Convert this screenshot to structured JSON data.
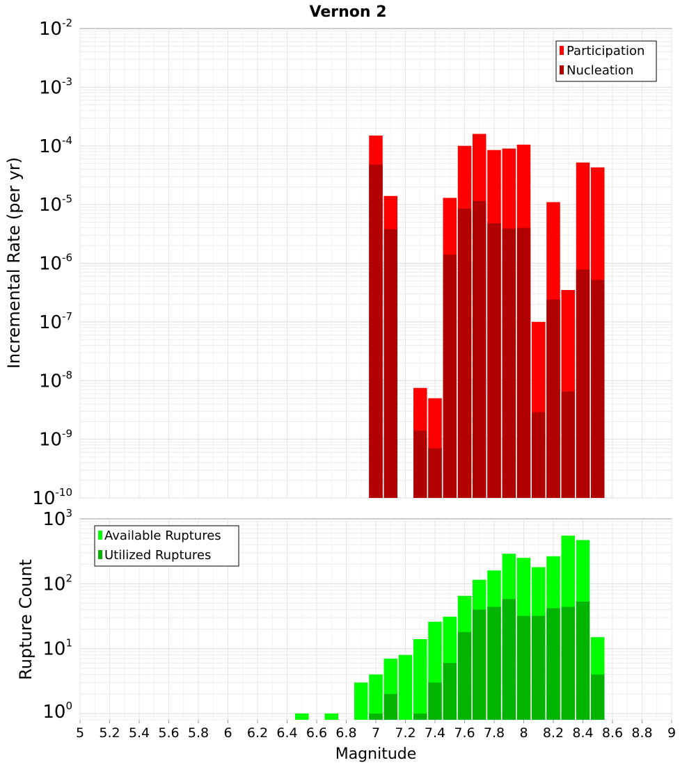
{
  "chart_data": [
    {
      "id": "rate",
      "type": "bar",
      "title": "Vernon 2",
      "xlabel": "Magnitude",
      "ylabel": "Incremental Rate (per yr)",
      "yscale": "log",
      "ylim": [
        1e-10,
        0.01
      ],
      "xlim": [
        5,
        9
      ],
      "grid": true,
      "legend_position": "top-right",
      "y_ticks": [
        {
          "base": "10",
          "exp": "-10"
        },
        {
          "base": "10",
          "exp": "-9"
        },
        {
          "base": "10",
          "exp": "-8"
        },
        {
          "base": "10",
          "exp": "-7"
        },
        {
          "base": "10",
          "exp": "-6"
        },
        {
          "base": "10",
          "exp": "-5"
        },
        {
          "base": "10",
          "exp": "-4"
        },
        {
          "base": "10",
          "exp": "-3"
        },
        {
          "base": "10",
          "exp": "-2"
        }
      ],
      "x": [
        7.0,
        7.1,
        7.2,
        7.3,
        7.4,
        7.5,
        7.6,
        7.7,
        7.8,
        7.9,
        8.0,
        8.1,
        8.2,
        8.3,
        8.4,
        8.5
      ],
      "series": [
        {
          "name": "Participation",
          "color": "#ff0000",
          "values": [
            0.00015,
            1.4e-05,
            null,
            7.5e-09,
            5e-09,
            1.3e-05,
            0.0001,
            0.00016,
            8.5e-05,
            9e-05,
            0.000105,
            1e-07,
            1.1e-05,
            3.5e-07,
            5.2e-05,
            4.3e-05
          ]
        },
        {
          "name": "Nucleation",
          "color": "#b00000",
          "values": [
            4.8e-05,
            3.8e-06,
            null,
            1.4e-09,
            7e-10,
            1.4e-06,
            8.5e-06,
            1.15e-05,
            4.8e-06,
            3.9e-06,
            4e-06,
            2.9e-09,
            2.4e-07,
            6.5e-09,
            7.8e-07,
            5.2e-07
          ]
        }
      ]
    },
    {
      "id": "count",
      "type": "bar",
      "xlabel": "Magnitude",
      "ylabel": "Rupture Count",
      "yscale": "log",
      "ylim": [
        0.8,
        1000
      ],
      "xlim": [
        5,
        9
      ],
      "grid": true,
      "legend_position": "top-left",
      "y_ticks": [
        {
          "base": "10",
          "exp": "0"
        },
        {
          "base": "10",
          "exp": "1"
        },
        {
          "base": "10",
          "exp": "2"
        },
        {
          "base": "10",
          "exp": "3"
        }
      ],
      "x_ticks": [
        "5",
        "5.2",
        "5.4",
        "5.6",
        "5.8",
        "6",
        "6.2",
        "6.4",
        "6.6",
        "6.8",
        "7",
        "7.2",
        "7.4",
        "7.6",
        "7.8",
        "8",
        "8.2",
        "8.4",
        "8.6",
        "8.8",
        "9"
      ],
      "x": [
        6.5,
        6.6,
        6.7,
        6.8,
        6.9,
        7.0,
        7.1,
        7.2,
        7.3,
        7.4,
        7.5,
        7.6,
        7.7,
        7.8,
        7.9,
        8.0,
        8.1,
        8.2,
        8.3,
        8.4,
        8.5
      ],
      "series": [
        {
          "name": "Available Ruptures",
          "color": "#00ff00",
          "values": [
            1,
            null,
            1,
            null,
            3,
            4,
            7,
            8,
            14,
            26,
            31,
            65,
            115,
            160,
            290,
            250,
            180,
            265,
            550,
            470,
            15
          ]
        },
        {
          "name": "Utilized Ruptures",
          "color": "#00b400",
          "values": [
            null,
            null,
            null,
            null,
            null,
            1,
            2,
            null,
            1,
            3,
            6,
            18,
            40,
            44,
            58,
            32,
            32,
            42,
            44,
            53,
            4
          ]
        }
      ]
    }
  ]
}
